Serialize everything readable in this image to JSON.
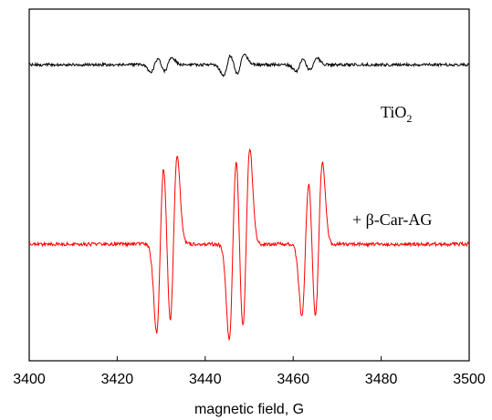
{
  "chart_data": {
    "type": "line",
    "title": "",
    "xlabel": "magnetic field, G",
    "ylabel": "",
    "xlim": [
      3400,
      3500
    ],
    "xticks": [
      3400,
      3420,
      3440,
      3460,
      3480,
      3500
    ],
    "grid": false,
    "legend": "none",
    "annotations": {
      "tio2_main": "TiO",
      "tio2_sub": "2",
      "car": "+ β-Car-AG"
    },
    "series": [
      {
        "color": "#000000",
        "peaks": [
          {
            "x": 3428.5,
            "amp": 0.7
          },
          {
            "x": 3431.5,
            "amp": 0.7
          },
          {
            "x": 3445.0,
            "amp": 1.0
          },
          {
            "x": 3448.0,
            "amp": 1.0
          },
          {
            "x": 3461.5,
            "amp": 0.6
          },
          {
            "x": 3464.5,
            "amp": 0.6
          }
        ]
      },
      {
        "color": "#ff0000",
        "peaks": [
          {
            "x": 3429.8,
            "amp": 0.92
          },
          {
            "x": 3432.8,
            "amp": 0.92
          },
          {
            "x": 3446.3,
            "amp": 1.0
          },
          {
            "x": 3449.3,
            "amp": 1.0
          },
          {
            "x": 3462.8,
            "amp": 0.75
          },
          {
            "x": 3465.8,
            "amp": 0.85
          }
        ]
      }
    ]
  }
}
